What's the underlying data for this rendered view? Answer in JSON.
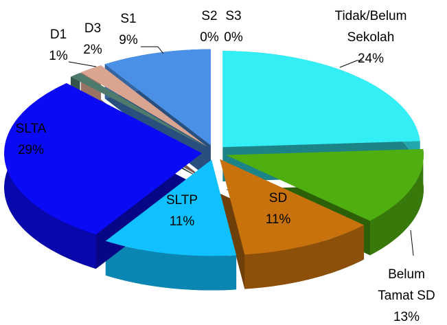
{
  "chart_data": {
    "type": "pie",
    "categories": [
      "Tidak/Belum Sekolah",
      "Belum Tamat SD",
      "SD",
      "SLTP",
      "SLTA",
      "D1",
      "D3",
      "S1",
      "S2",
      "S3"
    ],
    "values": [
      24,
      13,
      11,
      11,
      29,
      1,
      2,
      9,
      0,
      0
    ],
    "value_labels": [
      "24%",
      "13%",
      "11%",
      "11%",
      "29%",
      "1%",
      "2%",
      "9%",
      "0%",
      "0%"
    ],
    "colors": [
      "#33eef5",
      "#4fae10",
      "#c8720e",
      "#10c0ff",
      "#0a0af5",
      "#4e7a6e",
      "#d9a490",
      "#4a90e6",
      "#9ad8d8",
      "#7ab0c0"
    ]
  }
}
